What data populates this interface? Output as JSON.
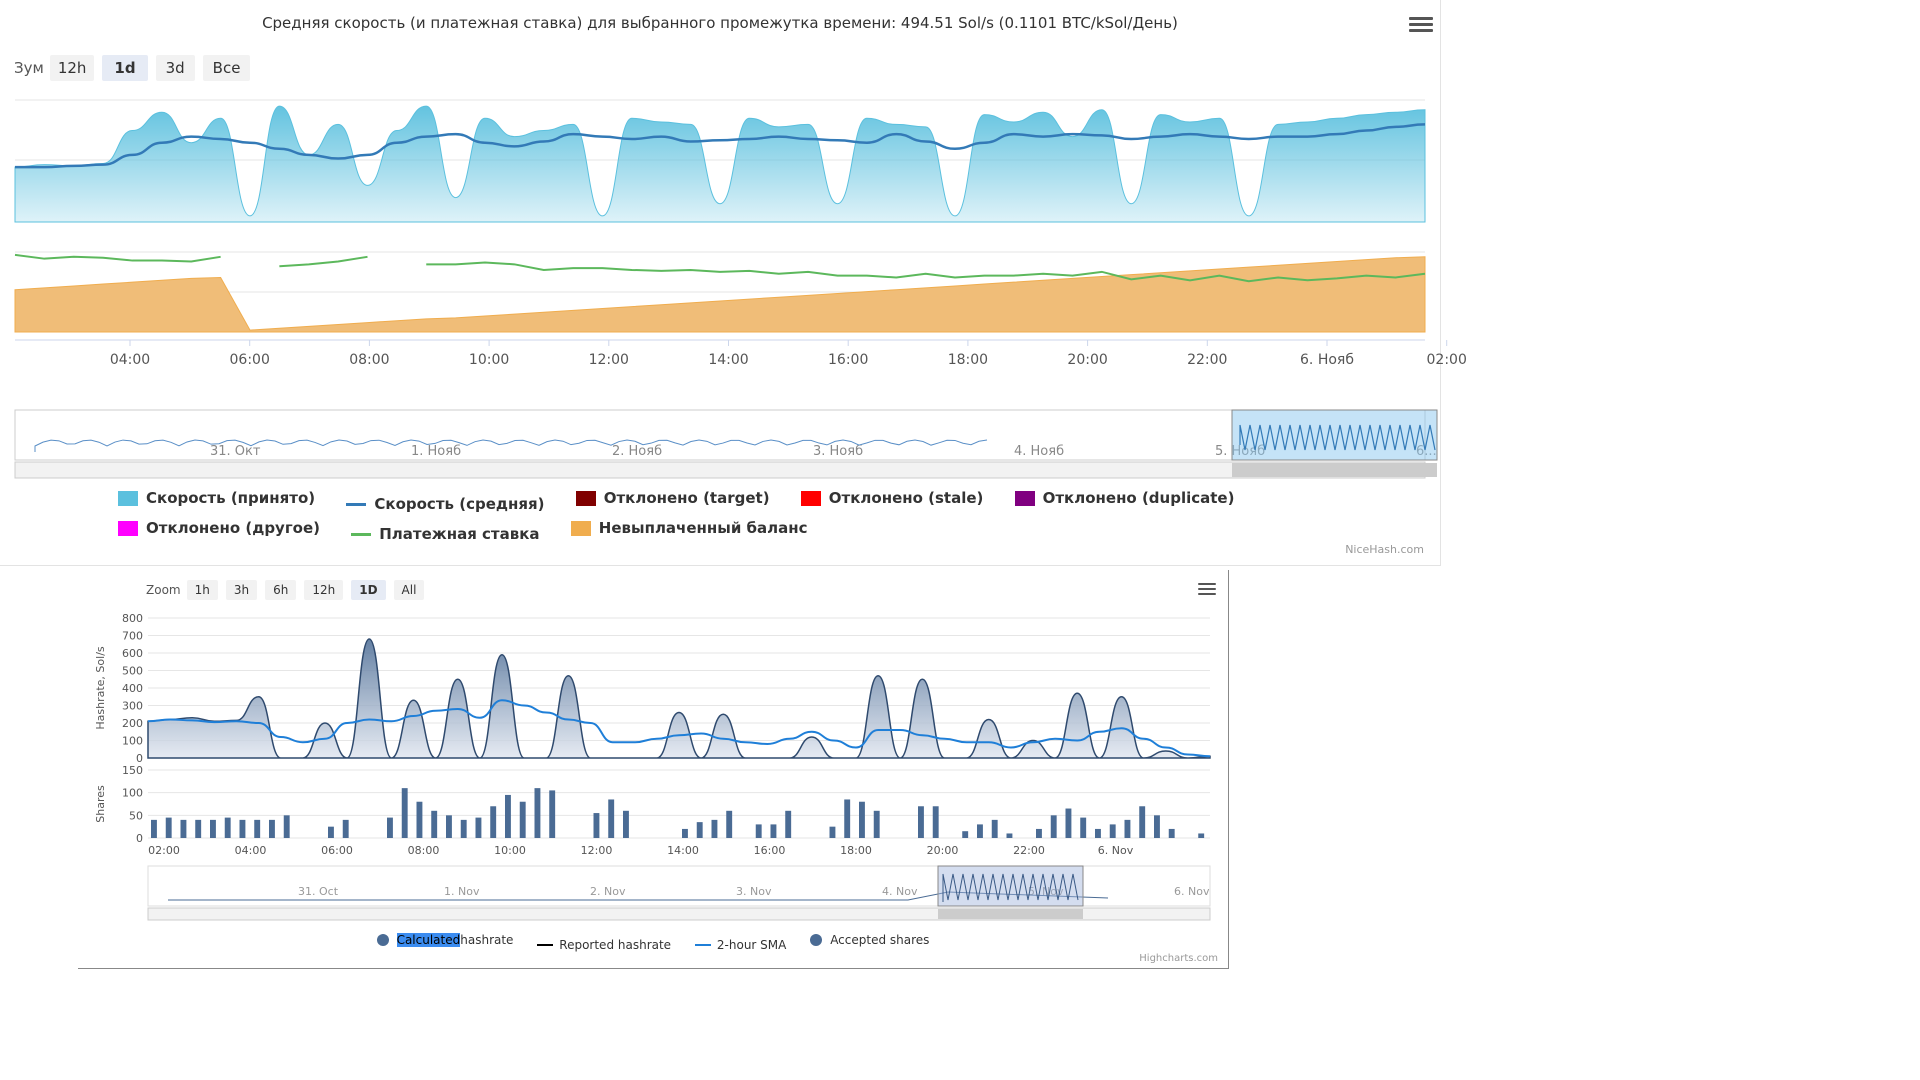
{
  "chart1": {
    "title": "Средняя скорость (и платежная ставка) для выбранного промежутка времени: 494.51 Sol/s (0.1101 BTC/kSol/День)",
    "zoom_label": "Зум",
    "zoom_buttons": [
      "12h",
      "1d",
      "3d",
      "Все"
    ],
    "zoom_selected": "1d",
    "x_ticks": [
      "04:00",
      "06:00",
      "08:00",
      "10:00",
      "12:00",
      "14:00",
      "16:00",
      "18:00",
      "20:00",
      "22:00",
      "6. Нояб",
      "02:00"
    ],
    "navigator_labels": [
      "31. Окт",
      "1. Нояб",
      "2. Нояб",
      "3. Нояб",
      "4. Нояб",
      "5. Нояб",
      "6..."
    ],
    "legend": [
      {
        "name": "Скорость (принято)",
        "color": "#5bc0de",
        "kind": "area"
      },
      {
        "name": "Скорость (средняя)",
        "color": "#337ab7",
        "kind": "line"
      },
      {
        "name": "Отклонено (target)",
        "color": "#800000",
        "kind": "area"
      },
      {
        "name": "Отклонено (stale)",
        "color": "#ff0000",
        "kind": "area"
      },
      {
        "name": "Отклонено (duplicate)",
        "color": "#800080",
        "kind": "area"
      },
      {
        "name": "Отклонено (другое)",
        "color": "#ff00ff",
        "kind": "area"
      },
      {
        "name": "Платежная ставка",
        "color": "#5cb85c",
        "kind": "line"
      },
      {
        "name": "Невыплаченный баланс",
        "color": "#f0ad4e",
        "kind": "area"
      }
    ],
    "credit": "NiceHash.com"
  },
  "chart2": {
    "zoom_label": "Zoom",
    "zoom_buttons": [
      "1h",
      "3h",
      "6h",
      "12h",
      "1D",
      "All"
    ],
    "zoom_selected": "1D",
    "hashrate_axis_title": "Hashrate, Sol/s",
    "shares_axis_title": "Shares",
    "hashrate_ticks": [
      "800",
      "700",
      "600",
      "500",
      "400",
      "300",
      "200",
      "100",
      "0"
    ],
    "shares_ticks": [
      "150",
      "100",
      "50",
      "0"
    ],
    "x_ticks": [
      "02:00",
      "04:00",
      "06:00",
      "08:00",
      "10:00",
      "12:00",
      "14:00",
      "16:00",
      "18:00",
      "20:00",
      "22:00",
      "6. Nov"
    ],
    "navigator_labels": [
      "31. Oct",
      "1. Nov",
      "2. Nov",
      "3. Nov",
      "4. Nov",
      "5. Nov",
      "6. Nov"
    ],
    "legend": [
      {
        "name_highlight": "Calculated",
        "name_rest": " hashrate",
        "color": "#4a6b94",
        "kind": "dot"
      },
      {
        "name": "Reported hashrate",
        "color": "#000000",
        "kind": "line"
      },
      {
        "name": "2-hour SMA",
        "color": "#1f7fd8",
        "kind": "line"
      },
      {
        "name": "Accepted shares",
        "color": "#4a6b94",
        "kind": "dot"
      }
    ],
    "credit": "Highcharts.com"
  },
  "chart_data": [
    {
      "type": "area",
      "title": "Средняя скорость (и платежная ставка) для выбранного промежутка времени: 494.51 Sol/s (0.1101 BTC/kSol/День)",
      "x_unit": "hours since 02:00 (5 Nov)",
      "x": [
        0.0,
        0.5,
        1.0,
        1.5,
        2.0,
        2.5,
        3.0,
        3.5,
        4.0,
        4.5,
        5.0,
        5.5,
        6.0,
        6.5,
        7.0,
        7.5,
        8.0,
        8.5,
        9.0,
        9.5,
        10.0,
        10.5,
        11.0,
        11.5,
        12.0,
        12.5,
        13.0,
        13.5,
        14.0,
        14.5,
        15.0,
        15.5,
        16.0,
        16.5,
        17.0,
        17.5,
        18.0,
        18.5,
        19.0,
        19.5,
        20.0,
        20.5,
        21.0,
        21.5,
        22.0,
        22.5,
        23.0,
        23.5,
        24.0
      ],
      "series": [
        {
          "name": "Скорость (принято)",
          "values": [
            0.45,
            0.47,
            0.46,
            0.48,
            0.75,
            0.9,
            0.65,
            0.85,
            0.05,
            0.95,
            0.55,
            0.8,
            0.3,
            0.75,
            0.95,
            0.2,
            0.85,
            0.7,
            0.75,
            0.8,
            0.05,
            0.85,
            0.82,
            0.8,
            0.15,
            0.85,
            0.78,
            0.8,
            0.15,
            0.85,
            0.8,
            0.78,
            0.05,
            0.88,
            0.82,
            0.9,
            0.7,
            0.92,
            0.15,
            0.88,
            0.82,
            0.85,
            0.05,
            0.8,
            0.82,
            0.85,
            0.88,
            0.9,
            0.92
          ]
        },
        {
          "name": "Скорость (средняя)",
          "values": [
            0.45,
            0.45,
            0.46,
            0.47,
            0.55,
            0.65,
            0.7,
            0.68,
            0.65,
            0.6,
            0.55,
            0.52,
            0.55,
            0.65,
            0.7,
            0.72,
            0.65,
            0.62,
            0.66,
            0.72,
            0.7,
            0.68,
            0.7,
            0.66,
            0.67,
            0.68,
            0.7,
            0.68,
            0.67,
            0.65,
            0.72,
            0.66,
            0.6,
            0.65,
            0.72,
            0.7,
            0.72,
            0.71,
            0.68,
            0.7,
            0.72,
            0.7,
            0.68,
            0.7,
            0.7,
            0.72,
            0.75,
            0.78,
            0.8
          ]
        },
        {
          "name": "Платежная ставка",
          "values": [
            0.82,
            0.78,
            0.8,
            0.79,
            0.76,
            0.76,
            0.75,
            0.8,
            null,
            0.7,
            0.72,
            0.75,
            0.8,
            null,
            0.72,
            0.72,
            0.74,
            0.72,
            0.66,
            0.68,
            0.68,
            0.66,
            0.65,
            0.66,
            0.64,
            0.65,
            0.62,
            0.64,
            0.6,
            0.6,
            0.58,
            0.62,
            0.58,
            0.6,
            0.6,
            0.62,
            0.6,
            0.64,
            0.56,
            0.6,
            0.55,
            0.6,
            0.54,
            0.58,
            0.55,
            0.57,
            0.6,
            0.58,
            0.62
          ]
        },
        {
          "name": "Невыплаченный баланс",
          "values": [
            0.45,
            0.47,
            0.49,
            0.51,
            0.53,
            0.55,
            0.57,
            0.58,
            0.02,
            0.04,
            0.06,
            0.08,
            0.1,
            0.12,
            0.14,
            0.15,
            0.17,
            0.19,
            0.21,
            0.23,
            0.25,
            0.27,
            0.29,
            0.31,
            0.33,
            0.35,
            0.37,
            0.39,
            0.41,
            0.43,
            0.45,
            0.47,
            0.49,
            0.51,
            0.53,
            0.55,
            0.57,
            0.59,
            0.61,
            0.63,
            0.65,
            0.67,
            0.69,
            0.71,
            0.73,
            0.75,
            0.77,
            0.79,
            0.8
          ]
        }
      ],
      "ylim": [
        0,
        1
      ]
    },
    {
      "type": "area",
      "x_unit": "hours since 01:30 (5 Nov)",
      "x": [
        0.0,
        0.5,
        1.0,
        1.5,
        2.0,
        2.5,
        3.0,
        3.5,
        4.0,
        4.5,
        5.0,
        5.5,
        6.0,
        6.5,
        7.0,
        7.5,
        8.0,
        8.5,
        9.0,
        9.5,
        10.0,
        10.5,
        11.0,
        11.5,
        12.0,
        12.5,
        13.0,
        13.5,
        14.0,
        14.5,
        15.0,
        15.5,
        16.0,
        16.5,
        17.0,
        17.5,
        18.0,
        18.5,
        19.0,
        19.5,
        20.0,
        20.5,
        21.0,
        21.5,
        22.0,
        22.5,
        23.0,
        23.5,
        24.0
      ],
      "ylabel": "Hashrate, Sol/s",
      "ylim": [
        0,
        800
      ],
      "series": [
        {
          "name": "Calculated hashrate",
          "values": [
            210,
            220,
            230,
            210,
            215,
            350,
            0,
            0,
            200,
            0,
            680,
            0,
            330,
            0,
            450,
            0,
            590,
            0,
            0,
            470,
            0,
            0,
            0,
            0,
            260,
            0,
            250,
            0,
            0,
            0,
            120,
            0,
            0,
            470,
            0,
            450,
            0,
            0,
            220,
            0,
            100,
            0,
            370,
            0,
            350,
            0,
            40,
            0,
            10
          ]
        },
        {
          "name": "2-hour SMA",
          "values": [
            210,
            220,
            215,
            205,
            210,
            200,
            120,
            90,
            110,
            200,
            220,
            210,
            240,
            270,
            280,
            230,
            330,
            300,
            260,
            220,
            200,
            90,
            90,
            110,
            130,
            140,
            110,
            90,
            80,
            110,
            150,
            100,
            60,
            160,
            160,
            130,
            110,
            90,
            90,
            60,
            90,
            110,
            100,
            150,
            170,
            110,
            60,
            20,
            10
          ]
        }
      ]
    },
    {
      "type": "bar",
      "ylabel": "Shares",
      "ylim": [
        0,
        150
      ],
      "series": [
        {
          "name": "Accepted shares",
          "values": [
            40,
            45,
            40,
            40,
            40,
            45,
            40,
            40,
            40,
            50,
            0,
            0,
            25,
            40,
            0,
            0,
            45,
            110,
            80,
            60,
            50,
            40,
            45,
            70,
            95,
            80,
            110,
            105,
            0,
            0,
            55,
            85,
            60,
            0,
            0,
            0,
            20,
            35,
            40,
            60,
            0,
            30,
            30,
            60,
            0,
            0,
            25,
            85,
            80,
            60,
            0,
            0,
            70,
            70,
            0,
            15,
            30,
            40,
            10,
            0,
            20,
            50,
            65,
            45,
            20,
            30,
            40,
            70,
            50,
            20,
            0,
            10
          ]
        }
      ]
    }
  ]
}
